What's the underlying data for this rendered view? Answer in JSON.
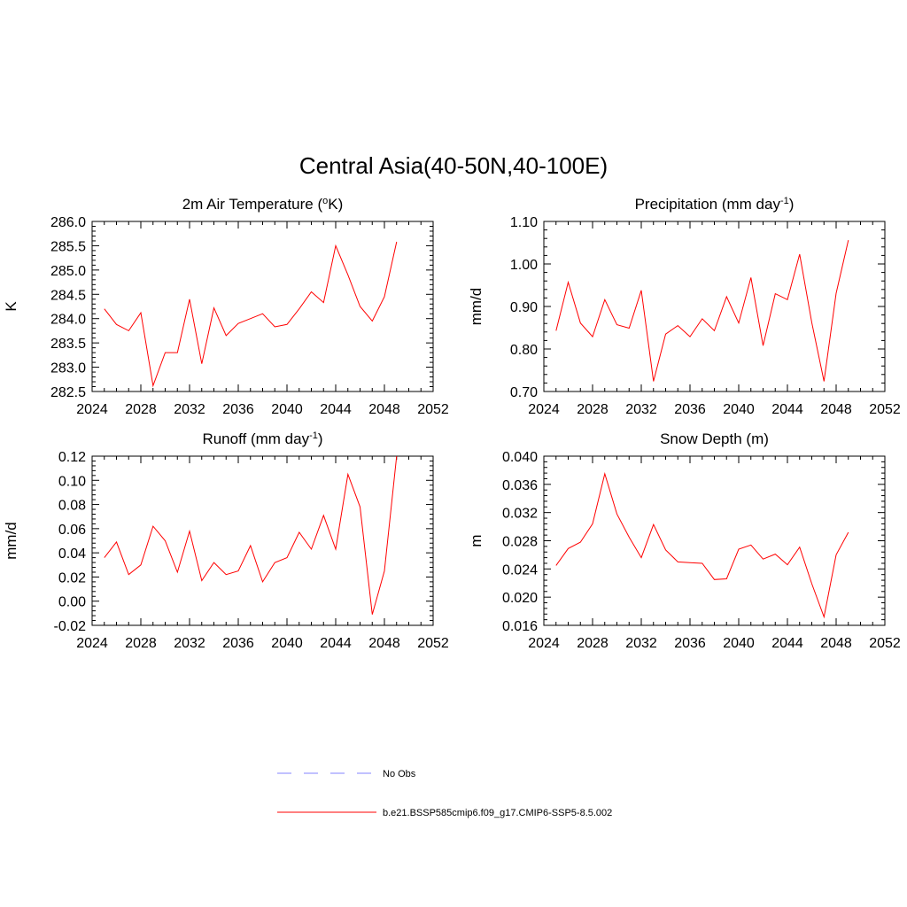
{
  "figure": {
    "title": "Central Asia(40-50N,40-100E)"
  },
  "legend": {
    "placement": "bottom-center",
    "entries": [
      {
        "label": "No Obs",
        "color": "#9c9cff",
        "dash": "dashed"
      },
      {
        "label": "b.e21.BSSP585cmip6.f09_g17.CMIP6-SSP5-8.5.002",
        "color": "#ff0000",
        "dash": "solid"
      }
    ]
  },
  "chart_data": [
    {
      "type": "line",
      "title": "2m Air Temperature (",
      "title_sup": "o",
      "title_post": "K)",
      "ylabel": "K",
      "xlim": [
        2024,
        2052
      ],
      "ylim": [
        282.5,
        286.0
      ],
      "xticks": [
        2024,
        2028,
        2032,
        2036,
        2040,
        2044,
        2048,
        2052
      ],
      "yticks": [
        "282.5",
        "283.0",
        "283.5",
        "284.0",
        "284.5",
        "285.0",
        "285.5",
        "286.0"
      ],
      "series": [
        {
          "color": "#ff0000",
          "x": [
            2025,
            2026,
            2027,
            2028,
            2029,
            2030,
            2031,
            2032,
            2033,
            2034,
            2035,
            2036,
            2037,
            2038,
            2039,
            2040,
            2041,
            2042,
            2043,
            2044,
            2045,
            2046,
            2047,
            2048,
            2049
          ],
          "y": [
            284.2,
            283.88,
            283.75,
            284.12,
            282.62,
            283.3,
            283.3,
            284.4,
            283.07,
            284.22,
            283.65,
            283.9,
            284.0,
            284.1,
            283.83,
            283.88,
            284.2,
            284.55,
            284.33,
            285.5,
            284.9,
            284.25,
            283.95,
            284.45,
            285.58
          ]
        }
      ]
    },
    {
      "type": "line",
      "title": "Precipitation (mm day",
      "title_sup": "-1",
      "title_post": ")",
      "ylabel": "mm/d",
      "xlim": [
        2024,
        2052
      ],
      "ylim": [
        0.7,
        1.1
      ],
      "xticks": [
        2024,
        2028,
        2032,
        2036,
        2040,
        2044,
        2048,
        2052
      ],
      "yticks": [
        "0.70",
        "0.80",
        "0.90",
        "1.00",
        "1.10"
      ],
      "series": [
        {
          "color": "#ff0000",
          "x": [
            2025,
            2026,
            2027,
            2028,
            2029,
            2030,
            2031,
            2032,
            2033,
            2034,
            2035,
            2036,
            2037,
            2038,
            2039,
            2040,
            2041,
            2042,
            2043,
            2044,
            2045,
            2046,
            2047,
            2048,
            2049
          ],
          "y": [
            0.843,
            0.957,
            0.861,
            0.829,
            0.916,
            0.857,
            0.849,
            0.938,
            0.724,
            0.835,
            0.855,
            0.829,
            0.871,
            0.843,
            0.923,
            0.861,
            0.968,
            0.808,
            0.93,
            0.916,
            1.023,
            0.862,
            0.724,
            0.931,
            1.056
          ]
        }
      ]
    },
    {
      "type": "line",
      "title": "Runoff (mm day",
      "title_sup": "-1",
      "title_post": ")",
      "ylabel": "mm/d",
      "xlim": [
        2024,
        2052
      ],
      "ylim": [
        -0.02,
        0.12
      ],
      "xticks": [
        2024,
        2028,
        2032,
        2036,
        2040,
        2044,
        2048,
        2052
      ],
      "yticks": [
        "-0.02",
        "0.00",
        "0.02",
        "0.04",
        "0.06",
        "0.08",
        "0.10",
        "0.12"
      ],
      "series": [
        {
          "color": "#ff0000",
          "x": [
            2025,
            2026,
            2027,
            2028,
            2029,
            2030,
            2031,
            2032,
            2033,
            2034,
            2035,
            2036,
            2037,
            2038,
            2039,
            2040,
            2041,
            2042,
            2043,
            2044,
            2045,
            2046,
            2047,
            2048,
            2049
          ],
          "y": [
            0.036,
            0.049,
            0.022,
            0.03,
            0.062,
            0.05,
            0.024,
            0.058,
            0.017,
            0.032,
            0.022,
            0.025,
            0.046,
            0.016,
            0.032,
            0.036,
            0.057,
            0.043,
            0.071,
            0.043,
            0.105,
            0.078,
            -0.011,
            0.025,
            0.12
          ]
        }
      ]
    },
    {
      "type": "line",
      "title": "Snow Depth (m)",
      "title_sup": "",
      "title_post": "",
      "ylabel": "m",
      "xlim": [
        2024,
        2052
      ],
      "ylim": [
        0.016,
        0.04
      ],
      "xticks": [
        2024,
        2028,
        2032,
        2036,
        2040,
        2044,
        2048,
        2052
      ],
      "yticks": [
        "0.016",
        "0.020",
        "0.024",
        "0.028",
        "0.032",
        "0.036",
        "0.040"
      ],
      "series": [
        {
          "color": "#ff0000",
          "x": [
            2025,
            2026,
            2027,
            2028,
            2029,
            2030,
            2031,
            2032,
            2033,
            2034,
            2035,
            2036,
            2037,
            2038,
            2039,
            2040,
            2041,
            2042,
            2043,
            2044,
            2045,
            2046,
            2047,
            2048,
            2049
          ],
          "y": [
            0.0245,
            0.0269,
            0.0278,
            0.0304,
            0.0375,
            0.0318,
            0.0285,
            0.0256,
            0.0303,
            0.0267,
            0.025,
            0.0249,
            0.0248,
            0.0225,
            0.0226,
            0.0268,
            0.0274,
            0.0254,
            0.0261,
            0.0246,
            0.0271,
            0.0219,
            0.0172,
            0.026,
            0.0292
          ]
        }
      ]
    }
  ]
}
